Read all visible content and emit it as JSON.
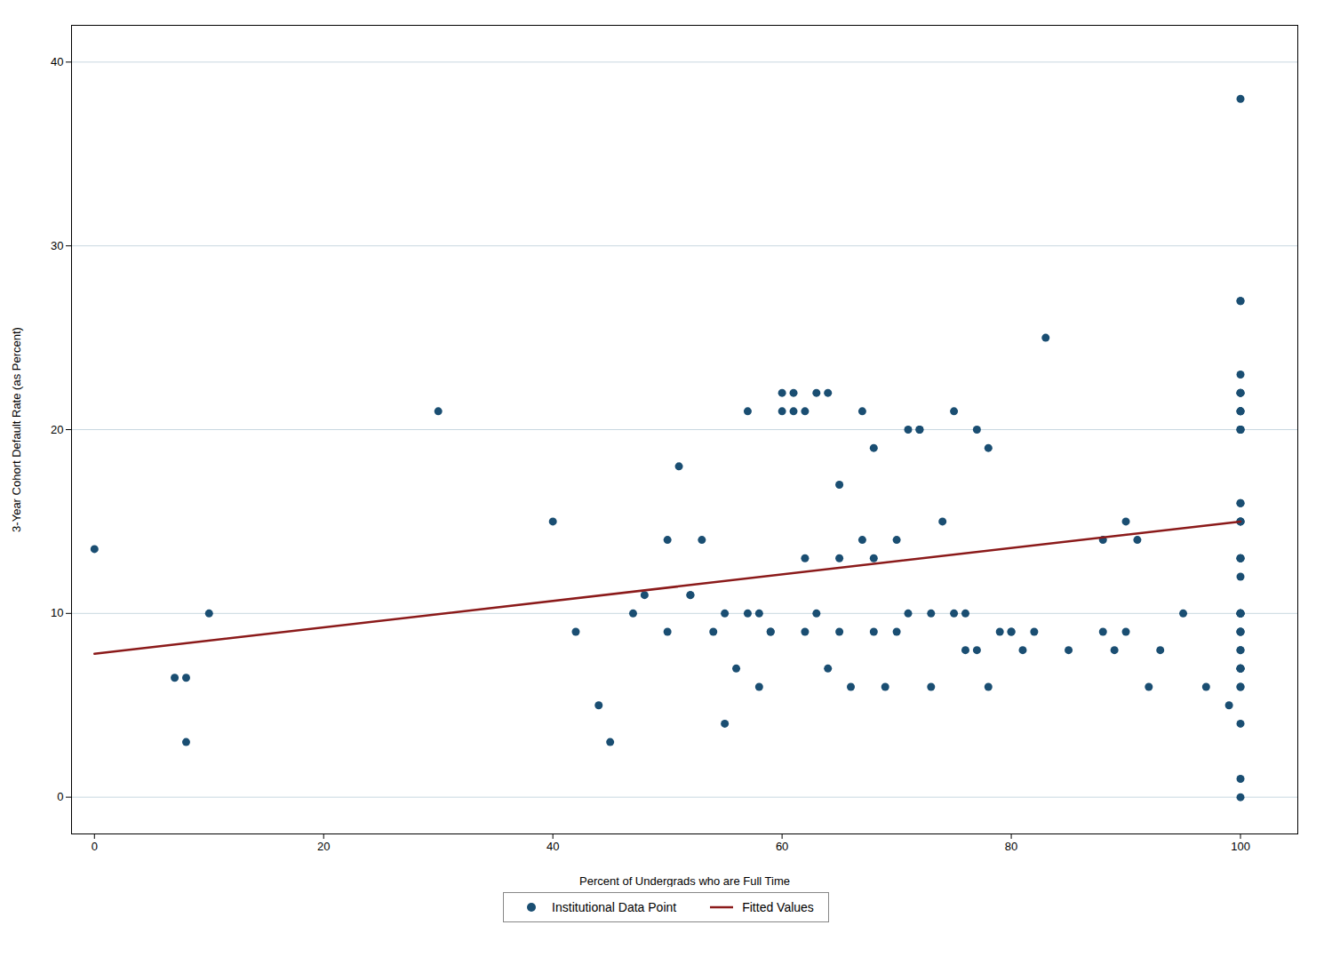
{
  "chart_data": {
    "type": "scatter",
    "xlabel": "Percent of Undergrads who are Full Time",
    "ylabel": "3-Year Cohort Default Rate (as Percent)",
    "series": [
      {
        "name": "Institutional Data Point",
        "type": "scatter",
        "marker": "circle",
        "color": "#1a4e72",
        "x": [
          0,
          7,
          8,
          8,
          10,
          30,
          40,
          42,
          44,
          45,
          47,
          48,
          50,
          50,
          51,
          52,
          52,
          53,
          54,
          55,
          55,
          56,
          57,
          57,
          58,
          58,
          59,
          59,
          60,
          60,
          61,
          61,
          62,
          62,
          62,
          63,
          63,
          64,
          64,
          65,
          65,
          65,
          66,
          67,
          67,
          68,
          68,
          68,
          69,
          70,
          70,
          71,
          71,
          72,
          72,
          73,
          73,
          74,
          75,
          75,
          76,
          76,
          77,
          77,
          78,
          78,
          79,
          80,
          80,
          81,
          82,
          83,
          85,
          88,
          88,
          89,
          90,
          90,
          91,
          92,
          93,
          95,
          97,
          99,
          100,
          100,
          100,
          100,
          100,
          100,
          100,
          100,
          100,
          100,
          100,
          100,
          100,
          100,
          100,
          100,
          100,
          100,
          100,
          100,
          100,
          100,
          100,
          100,
          100,
          100,
          100,
          100,
          100,
          100,
          100,
          100,
          100,
          100,
          100,
          100,
          100,
          100,
          100,
          100,
          100
        ],
        "values": [
          13.5,
          6.5,
          6.5,
          3,
          10,
          21,
          15,
          9,
          5,
          3,
          10,
          11,
          14,
          9,
          18,
          11,
          11,
          14,
          9,
          4,
          10,
          7,
          10,
          21,
          10,
          6,
          9,
          9,
          22,
          21,
          21,
          22,
          21,
          13,
          9,
          10,
          22,
          22,
          7,
          13,
          9,
          17,
          6,
          21,
          14,
          13,
          9,
          19,
          6,
          9,
          14,
          10,
          20,
          20,
          20,
          10,
          6,
          15,
          21,
          10,
          10,
          8,
          20,
          8,
          6,
          19,
          9,
          9,
          9,
          8,
          9,
          25,
          8,
          14,
          9,
          8,
          9,
          15,
          14,
          6,
          8,
          10,
          6,
          5,
          38,
          27,
          27,
          23,
          22,
          22,
          22,
          21,
          21,
          21,
          20,
          20,
          20,
          16,
          16,
          15,
          15,
          15,
          13,
          13,
          13,
          12,
          10,
          10,
          10,
          10,
          10,
          9,
          9,
          9,
          8,
          8,
          7,
          7,
          7,
          7,
          6,
          6,
          4,
          1,
          0
        ]
      },
      {
        "name": "Fitted Values",
        "type": "line",
        "line_style": "solid",
        "color": "#8b1a1a",
        "x": [
          0,
          100
        ],
        "values": [
          7.8,
          15.0
        ]
      }
    ],
    "xlim": [
      -2,
      105
    ],
    "ylim": [
      -2,
      42
    ],
    "xticks": [
      0,
      20,
      40,
      60,
      80,
      100
    ],
    "yticks": [
      0,
      10,
      20,
      30,
      40
    ],
    "grid": "y",
    "legend": "bottom"
  }
}
